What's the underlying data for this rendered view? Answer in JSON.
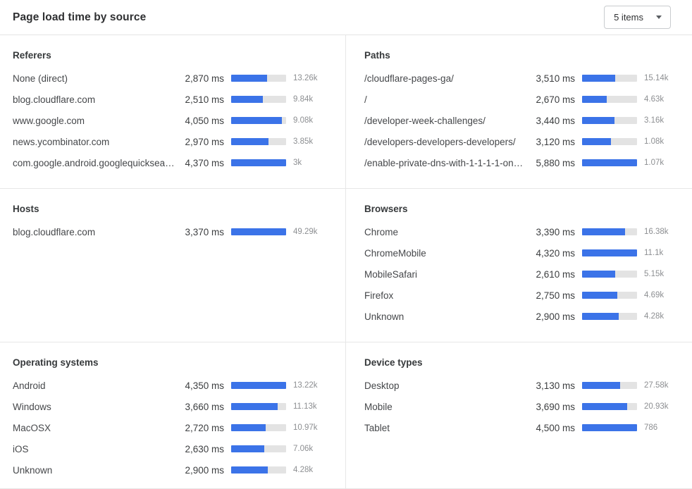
{
  "header": {
    "title": "Page load time by source",
    "items_select_label": "5 items"
  },
  "colors": {
    "bar_fill": "#3b73e8",
    "bar_track": "#e3e3e3",
    "muted_text": "#8d8f92"
  },
  "chart_data": [
    {
      "type": "bar",
      "title": "Referers",
      "value_unit": "ms",
      "rows": [
        {
          "label": "None (direct)",
          "ms": 2870,
          "ms_label": "2,870 ms",
          "count": "13.26k"
        },
        {
          "label": "blog.cloudflare.com",
          "ms": 2510,
          "ms_label": "2,510 ms",
          "count": "9.84k"
        },
        {
          "label": "www.google.com",
          "ms": 4050,
          "ms_label": "4,050 ms",
          "count": "9.08k"
        },
        {
          "label": "news.ycombinator.com",
          "ms": 2970,
          "ms_label": "2,970 ms",
          "count": "3.85k"
        },
        {
          "label": "com.google.android.googlequicksearc…",
          "ms": 4370,
          "ms_label": "4,370 ms",
          "count": "3k"
        }
      ]
    },
    {
      "type": "bar",
      "title": "Paths",
      "value_unit": "ms",
      "rows": [
        {
          "label": "/cloudflare-pages-ga/",
          "ms": 3510,
          "ms_label": "3,510 ms",
          "count": "15.14k"
        },
        {
          "label": "/",
          "ms": 2670,
          "ms_label": "2,670 ms",
          "count": "4.63k"
        },
        {
          "label": "/developer-week-challenges/",
          "ms": 3440,
          "ms_label": "3,440 ms",
          "count": "3.16k"
        },
        {
          "label": "/developers-developers-developers/",
          "ms": 3120,
          "ms_label": "3,120 ms",
          "count": "1.08k"
        },
        {
          "label": "/enable-private-dns-with-1-1-1-1-on-…",
          "ms": 5880,
          "ms_label": "5,880 ms",
          "count": "1.07k"
        }
      ]
    },
    {
      "type": "bar",
      "title": "Hosts",
      "value_unit": "ms",
      "rows": [
        {
          "label": "blog.cloudflare.com",
          "ms": 3370,
          "ms_label": "3,370 ms",
          "count": "49.29k"
        }
      ]
    },
    {
      "type": "bar",
      "title": "Browsers",
      "value_unit": "ms",
      "rows": [
        {
          "label": "Chrome",
          "ms": 3390,
          "ms_label": "3,390 ms",
          "count": "16.38k"
        },
        {
          "label": "ChromeMobile",
          "ms": 4320,
          "ms_label": "4,320 ms",
          "count": "11.1k"
        },
        {
          "label": "MobileSafari",
          "ms": 2610,
          "ms_label": "2,610 ms",
          "count": "5.15k"
        },
        {
          "label": "Firefox",
          "ms": 2750,
          "ms_label": "2,750 ms",
          "count": "4.69k"
        },
        {
          "label": "Unknown",
          "ms": 2900,
          "ms_label": "2,900 ms",
          "count": "4.28k"
        }
      ]
    },
    {
      "type": "bar",
      "title": "Operating systems",
      "value_unit": "ms",
      "rows": [
        {
          "label": "Android",
          "ms": 4350,
          "ms_label": "4,350 ms",
          "count": "13.22k"
        },
        {
          "label": "Windows",
          "ms": 3660,
          "ms_label": "3,660 ms",
          "count": "11.13k"
        },
        {
          "label": "MacOSX",
          "ms": 2720,
          "ms_label": "2,720 ms",
          "count": "10.97k"
        },
        {
          "label": "iOS",
          "ms": 2630,
          "ms_label": "2,630 ms",
          "count": "7.06k"
        },
        {
          "label": "Unknown",
          "ms": 2900,
          "ms_label": "2,900 ms",
          "count": "4.28k"
        }
      ]
    },
    {
      "type": "bar",
      "title": "Device types",
      "value_unit": "ms",
      "rows": [
        {
          "label": "Desktop",
          "ms": 3130,
          "ms_label": "3,130 ms",
          "count": "27.58k"
        },
        {
          "label": "Mobile",
          "ms": 3690,
          "ms_label": "3,690 ms",
          "count": "20.93k"
        },
        {
          "label": "Tablet",
          "ms": 4500,
          "ms_label": "4,500 ms",
          "count": "786"
        }
      ]
    }
  ]
}
